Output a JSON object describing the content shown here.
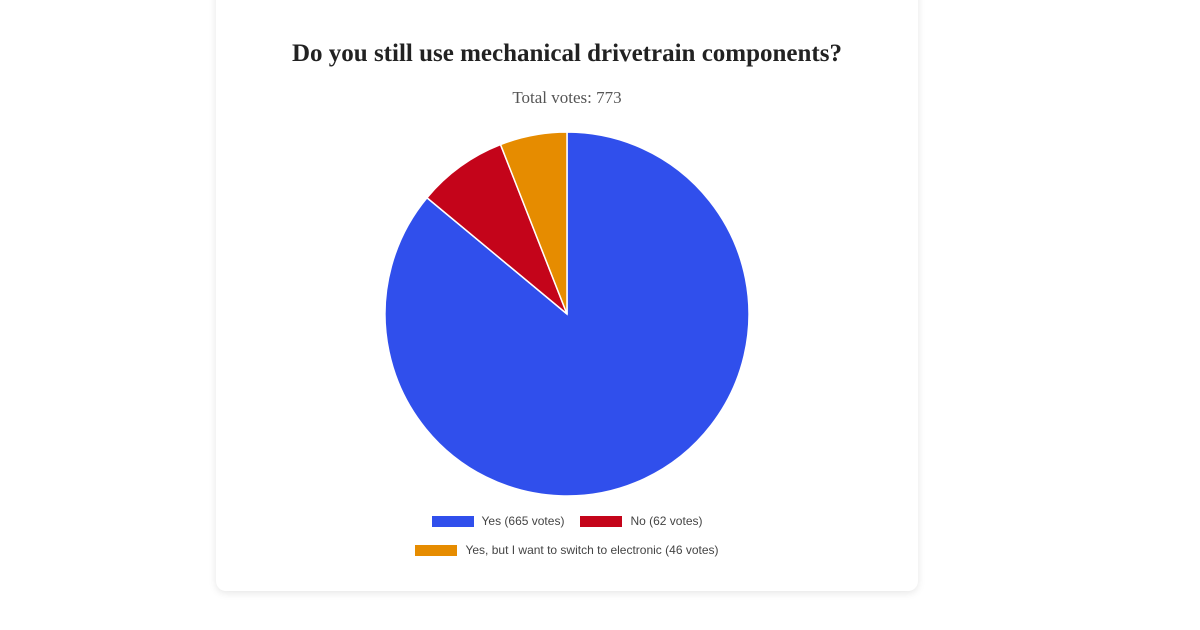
{
  "poll": {
    "title": "Do you still use mechanical drivetrain components?",
    "subtitle": "Total votes: 773"
  },
  "legend": [
    {
      "label": "Yes (665 votes)",
      "color": "#304FEC"
    },
    {
      "label": "No (62 votes)",
      "color": "#C4041A"
    },
    {
      "label": "Yes, but I want to switch to electronic (46 votes)",
      "color": "#E68C00"
    }
  ],
  "chart_data": {
    "type": "pie",
    "title": "Do you still use mechanical drivetrain components?",
    "subtitle": "Total votes: 773",
    "categories": [
      "Yes",
      "No",
      "Yes, but I want to switch to electronic"
    ],
    "values": [
      665,
      62,
      46
    ],
    "colors": [
      "#304FEC",
      "#C4041A",
      "#E68C00"
    ],
    "total": 773,
    "legend_position": "bottom",
    "start_angle": "12 o'clock, clockwise"
  }
}
